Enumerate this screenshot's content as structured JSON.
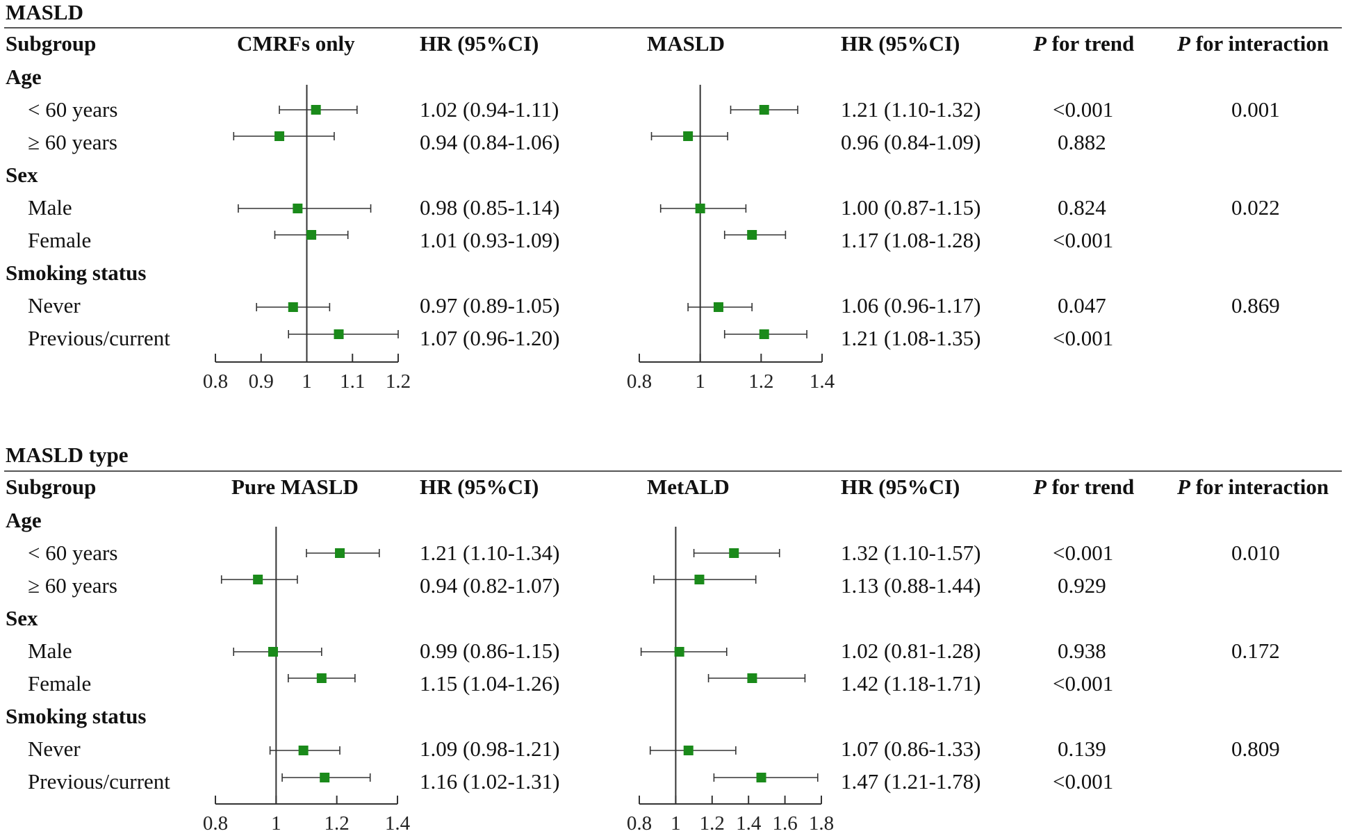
{
  "colors": {
    "marker": "#1a8a1a",
    "line": "#333333"
  },
  "panels": [
    {
      "title": "MASLD",
      "headers": {
        "subgroup": "Subgroup",
        "plot1": "CMRFs only",
        "hr1": "HR (95%CI)",
        "plot2": "MASLD",
        "hr2": "HR (95%CI)",
        "p_trend_italic": "P",
        "p_trend_rest": " for trend",
        "p_inter_italic": "P",
        "p_inter_rest": " for interaction"
      },
      "groups": [
        {
          "label": "Age",
          "rows": [
            {
              "label": "< 60 years",
              "hr1": "1.02 (0.94-1.11)",
              "hr2": "1.21 (1.10-1.32)",
              "p_trend": "<0.001",
              "p_interaction": "0.001"
            },
            {
              "label": "≥ 60 years",
              "hr1": "0.94 (0.84-1.06)",
              "hr2": "0.96 (0.84-1.09)",
              "p_trend": "0.882",
              "p_interaction": ""
            }
          ]
        },
        {
          "label": "Sex",
          "rows": [
            {
              "label": "Male",
              "hr1": "0.98 (0.85-1.14)",
              "hr2": "1.00 (0.87-1.15)",
              "p_trend": "0.824",
              "p_interaction": "0.022"
            },
            {
              "label": "Female",
              "hr1": "1.01 (0.93-1.09)",
              "hr2": "1.17 (1.08-1.28)",
              "p_trend": "<0.001",
              "p_interaction": ""
            }
          ]
        },
        {
          "label": "Smoking status",
          "rows": [
            {
              "label": "Never",
              "hr1": "0.97 (0.89-1.05)",
              "hr2": "1.06 (0.96-1.17)",
              "p_trend": "0.047",
              "p_interaction": "0.869"
            },
            {
              "label": "Previous/current",
              "hr1": "1.07 (0.96-1.20)",
              "hr2": "1.21 (1.08-1.35)",
              "p_trend": "<0.001",
              "p_interaction": ""
            }
          ]
        }
      ]
    },
    {
      "title": "MASLD type",
      "headers": {
        "subgroup": "Subgroup",
        "plot1": "Pure MASLD",
        "hr1": "HR (95%CI)",
        "plot2": "MetALD",
        "hr2": "HR (95%CI)",
        "p_trend_italic": "P",
        "p_trend_rest": " for trend",
        "p_inter_italic": "P",
        "p_inter_rest": " for interaction"
      },
      "groups": [
        {
          "label": "Age",
          "rows": [
            {
              "label": "< 60 years",
              "hr1": "1.21 (1.10-1.34)",
              "hr2": "1.32 (1.10-1.57)",
              "p_trend": "<0.001",
              "p_interaction": "0.010"
            },
            {
              "label": "≥ 60 years",
              "hr1": "0.94 (0.82-1.07)",
              "hr2": "1.13 (0.88-1.44)",
              "p_trend": "0.929",
              "p_interaction": ""
            }
          ]
        },
        {
          "label": "Sex",
          "rows": [
            {
              "label": "Male",
              "hr1": "0.99 (0.86-1.15)",
              "hr2": "1.02 (0.81-1.28)",
              "p_trend": "0.938",
              "p_interaction": "0.172"
            },
            {
              "label": "Female",
              "hr1": "1.15 (1.04-1.26)",
              "hr2": "1.42 (1.18-1.71)",
              "p_trend": "<0.001",
              "p_interaction": ""
            }
          ]
        },
        {
          "label": "Smoking status",
          "rows": [
            {
              "label": "Never",
              "hr1": "1.09 (0.98-1.21)",
              "hr2": "1.07 (0.86-1.33)",
              "p_trend": "0.139",
              "p_interaction": "0.809"
            },
            {
              "label": "Previous/current",
              "hr1": "1.16 (1.02-1.31)",
              "hr2": "1.47 (1.21-1.78)",
              "p_trend": "<0.001",
              "p_interaction": ""
            }
          ]
        }
      ]
    }
  ],
  "chart_data": [
    {
      "type": "scatter",
      "title": "CMRFs only",
      "xlim": [
        0.8,
        1.2
      ],
      "reference": 1,
      "ticks": [
        0.8,
        0.9,
        1,
        1.1,
        1.2
      ],
      "tick_labels": [
        "0.8",
        "0.9",
        "1",
        "1.1",
        "1.2"
      ],
      "points": [
        {
          "label": "< 60 years",
          "hr": 1.02,
          "lo": 0.94,
          "hi": 1.11
        },
        {
          "label": "≥ 60 years",
          "hr": 0.94,
          "lo": 0.84,
          "hi": 1.06
        },
        {
          "label": "Male",
          "hr": 0.98,
          "lo": 0.85,
          "hi": 1.14
        },
        {
          "label": "Female",
          "hr": 1.01,
          "lo": 0.93,
          "hi": 1.09
        },
        {
          "label": "Never",
          "hr": 0.97,
          "lo": 0.89,
          "hi": 1.05
        },
        {
          "label": "Previous/current",
          "hr": 1.07,
          "lo": 0.96,
          "hi": 1.2
        }
      ]
    },
    {
      "type": "scatter",
      "title": "MASLD",
      "xlim": [
        0.8,
        1.4
      ],
      "reference": 1,
      "ticks": [
        0.8,
        1,
        1.2,
        1.4
      ],
      "tick_labels": [
        "0.8",
        "1",
        "1.2",
        "1.4"
      ],
      "points": [
        {
          "label": "< 60 years",
          "hr": 1.21,
          "lo": 1.1,
          "hi": 1.32
        },
        {
          "label": "≥ 60 years",
          "hr": 0.96,
          "lo": 0.84,
          "hi": 1.09
        },
        {
          "label": "Male",
          "hr": 1.0,
          "lo": 0.87,
          "hi": 1.15
        },
        {
          "label": "Female",
          "hr": 1.17,
          "lo": 1.08,
          "hi": 1.28
        },
        {
          "label": "Never",
          "hr": 1.06,
          "lo": 0.96,
          "hi": 1.17
        },
        {
          "label": "Previous/current",
          "hr": 1.21,
          "lo": 1.08,
          "hi": 1.35
        }
      ]
    },
    {
      "type": "scatter",
      "title": "Pure MASLD",
      "xlim": [
        0.8,
        1.4
      ],
      "reference": 1,
      "ticks": [
        0.8,
        1,
        1.2,
        1.4
      ],
      "tick_labels": [
        "0.8",
        "1",
        "1.2",
        "1.4"
      ],
      "points": [
        {
          "label": "< 60 years",
          "hr": 1.21,
          "lo": 1.1,
          "hi": 1.34
        },
        {
          "label": "≥ 60 years",
          "hr": 0.94,
          "lo": 0.82,
          "hi": 1.07
        },
        {
          "label": "Male",
          "hr": 0.99,
          "lo": 0.86,
          "hi": 1.15
        },
        {
          "label": "Female",
          "hr": 1.15,
          "lo": 1.04,
          "hi": 1.26
        },
        {
          "label": "Never",
          "hr": 1.09,
          "lo": 0.98,
          "hi": 1.21
        },
        {
          "label": "Previous/current",
          "hr": 1.16,
          "lo": 1.02,
          "hi": 1.31
        }
      ]
    },
    {
      "type": "scatter",
      "title": "MetALD",
      "xlim": [
        0.8,
        1.8
      ],
      "reference": 1,
      "ticks": [
        0.8,
        1,
        1.2,
        1.4,
        1.6,
        1.8
      ],
      "tick_labels": [
        "0.8",
        "1",
        "1.2",
        "1.4",
        "1.6",
        "1.8"
      ],
      "points": [
        {
          "label": "< 60 years",
          "hr": 1.32,
          "lo": 1.1,
          "hi": 1.57
        },
        {
          "label": "≥ 60 years",
          "hr": 1.13,
          "lo": 0.88,
          "hi": 1.44
        },
        {
          "label": "Male",
          "hr": 1.02,
          "lo": 0.81,
          "hi": 1.28
        },
        {
          "label": "Female",
          "hr": 1.42,
          "lo": 1.18,
          "hi": 1.71
        },
        {
          "label": "Never",
          "hr": 1.07,
          "lo": 0.86,
          "hi": 1.33
        },
        {
          "label": "Previous/current",
          "hr": 1.47,
          "lo": 1.21,
          "hi": 1.78
        }
      ]
    }
  ]
}
